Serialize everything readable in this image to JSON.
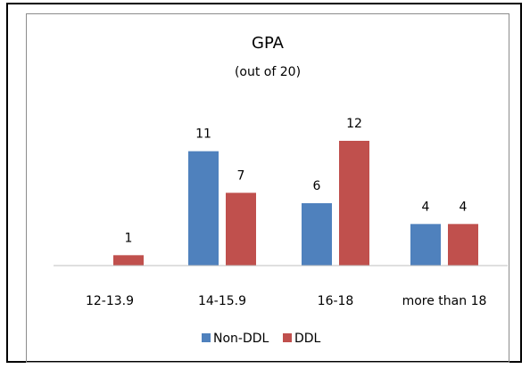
{
  "chart_data": {
    "type": "bar",
    "title": "GPA",
    "subtitle": "(out of 20)",
    "categories": [
      "12-13.9",
      "14-15.9",
      "16-18",
      "more than 18"
    ],
    "series": [
      {
        "name": "Non-DDL",
        "values": [
          null,
          11,
          6,
          4
        ],
        "color": "#4f81bd"
      },
      {
        "name": "DDL",
        "values": [
          1,
          7,
          12,
          4
        ],
        "color": "#c0504d"
      }
    ],
    "ylim": [
      0,
      12
    ],
    "grid": false,
    "legend": "bottom",
    "data_labels": true
  }
}
